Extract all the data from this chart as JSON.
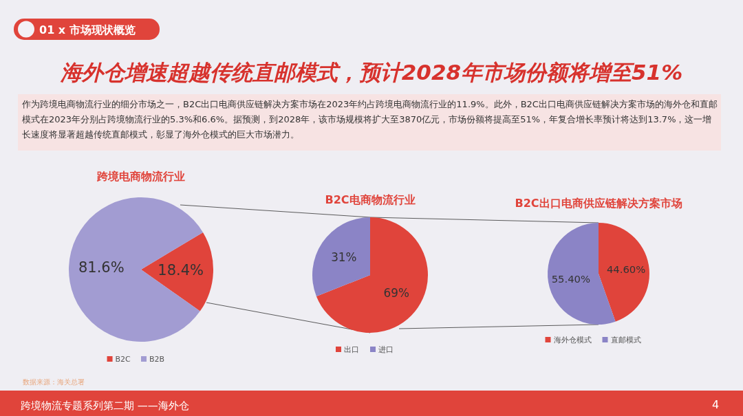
{
  "chart_data": [
    {
      "type": "other",
      "title": "海外仓增速超越传统直邮模式，预计2028年市场份额将增至51%",
      "subtitle": "作为跨境电商物流行业的细分市场之一，B2C出口电商供应链解决方案市场在2023年约占跨境电商物流行业的11.9%。此外，B2C出口电商供应链解决方案市场的海外仓和直邮模式在2023年分别占跨境物流行业的5.3%和6.6%。据预测，到2028年，该市场规模将扩大至3870亿元，市场份额将提高至51%，年复合增长率预计将达到13.7%，这一增长速度将显著超越传统直邮模式，彰显了海外仓模式的巨大市场潜力。",
      "annotations": [
        "01 x 市场现状概览",
        "数据来源：海关总署",
        "跨境物流专题系列第二期 ——海外仓",
        "4"
      ]
    },
    {
      "type": "pie",
      "title": "跨境电商物流行业",
      "categories": [
        "B2C",
        "B2B"
      ],
      "values": [
        18.4,
        81.6
      ],
      "colors": [
        "#e0443b",
        "#a29cd2"
      ],
      "value_labels": [
        "18.4%",
        "81.6%"
      ],
      "legend": "bottom"
    },
    {
      "type": "pie",
      "title": "B2C电商物流行业",
      "categories": [
        "出口",
        "进口"
      ],
      "values": [
        69,
        31
      ],
      "colors": [
        "#e0443b",
        "#8b84c6"
      ],
      "value_labels": [
        "69%",
        "31%"
      ],
      "legend": "bottom"
    },
    {
      "type": "pie",
      "title": "B2C出口电商供应链解决方案市场",
      "categories": [
        "海外仓模式",
        "直邮模式"
      ],
      "values": [
        44.6,
        55.4
      ],
      "colors": [
        "#e0443b",
        "#8b84c6"
      ],
      "value_labels": [
        "44.60%",
        "55.40%"
      ],
      "legend": "bottom"
    }
  ]
}
